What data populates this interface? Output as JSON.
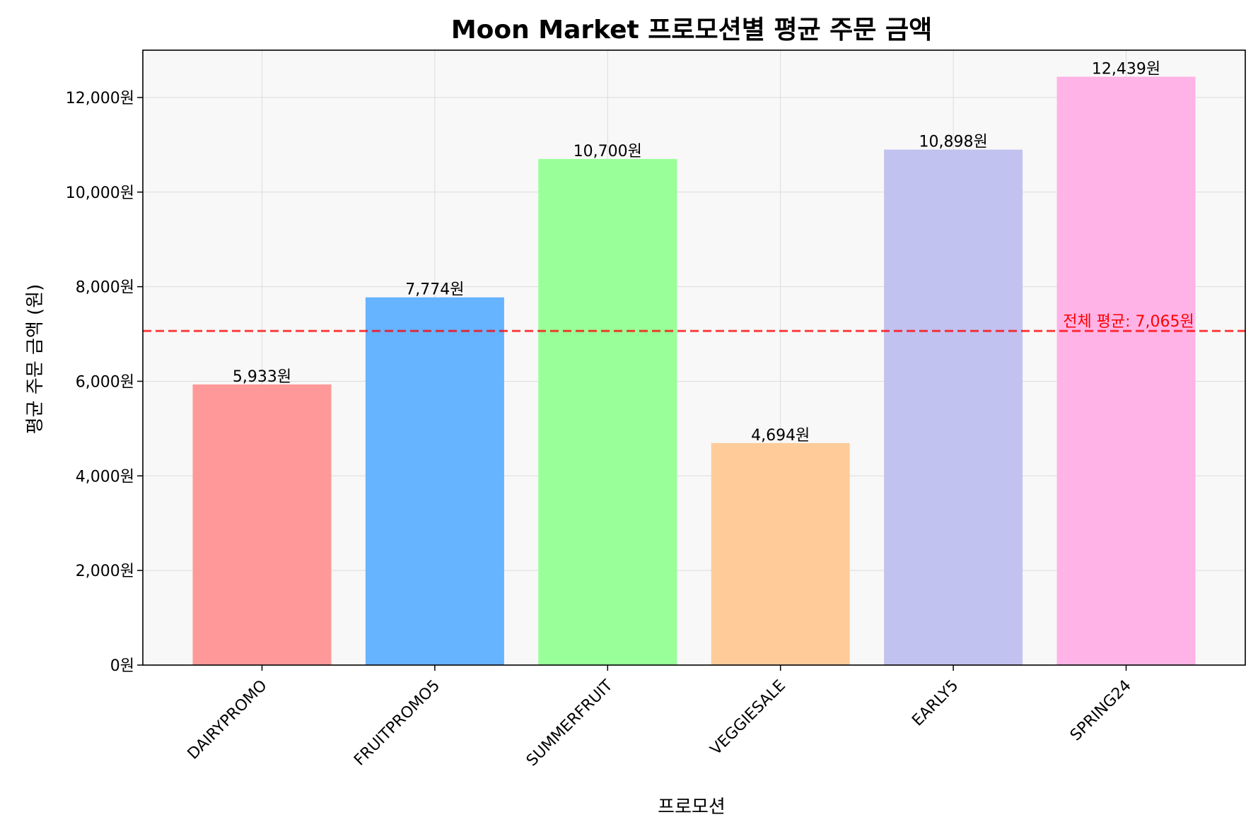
{
  "chart_data": {
    "type": "bar",
    "title": "Moon Market 프로모션별 평균 주문 금액",
    "xlabel": "프로모션",
    "ylabel": "평균 주문 금액 (원)",
    "categories": [
      "DAIRYPROMO",
      "FRUITPROMO5",
      "SUMMERFRUIT",
      "VEGGIESALE",
      "EARLY5",
      "SPRING24"
    ],
    "values": [
      5933,
      7774,
      10700,
      4694,
      10898,
      12439
    ],
    "value_labels": [
      "5,933원",
      "7,774원",
      "10,700원",
      "4,694원",
      "10,898원",
      "12,439원"
    ],
    "colors": [
      "#ff9999",
      "#66b3ff",
      "#99ff99",
      "#ffcc99",
      "#c2c2f0",
      "#ffb3e6"
    ],
    "ylim": [
      0,
      13000
    ],
    "yticks": [
      0,
      2000,
      4000,
      6000,
      8000,
      10000,
      12000
    ],
    "ytick_labels": [
      "0원",
      "2,000원",
      "4,000원",
      "6,000원",
      "8,000원",
      "10,000원",
      "12,000원"
    ],
    "grid": true,
    "average": {
      "value": 7065,
      "label": "전체 평균: 7,065원",
      "color": "#ff0000",
      "style": "dashed"
    },
    "plot_background": "#f8f8f8"
  }
}
